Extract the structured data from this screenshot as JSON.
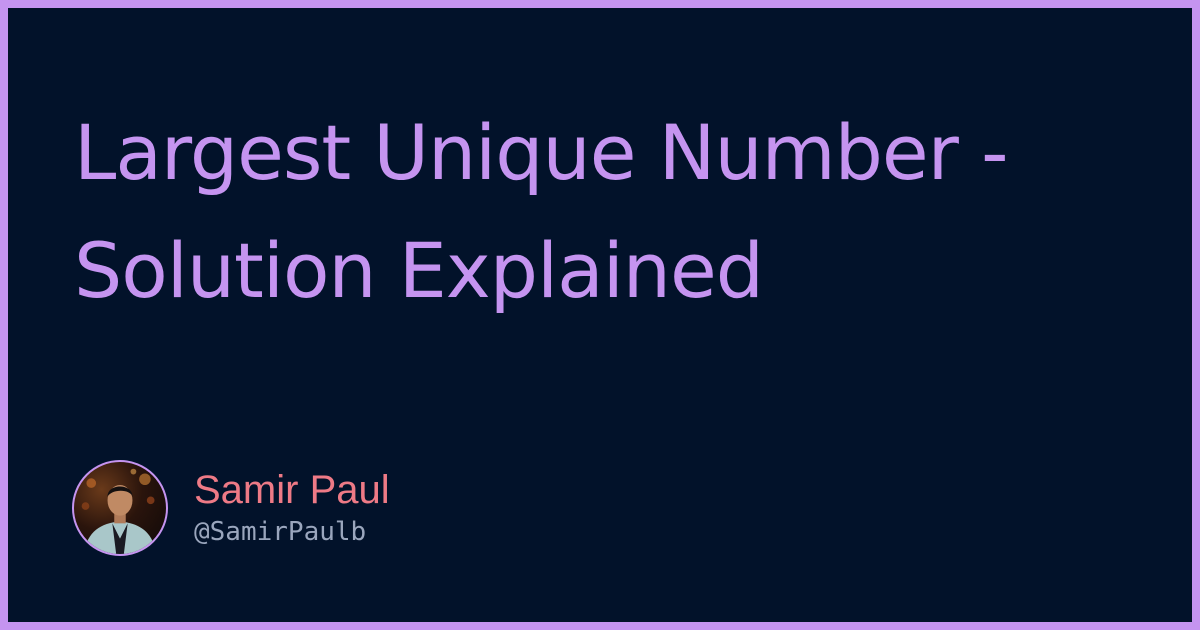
{
  "title": "Largest Unique Number - Solution Explained",
  "author": {
    "name": "Samir Paul",
    "handle": "@SamirPaulb"
  },
  "colors": {
    "frame": "#c594f0",
    "background": "#02122a",
    "title": "#c594f0",
    "author_name": "#ee7a86",
    "author_handle": "#9aa6bd"
  },
  "icons": {
    "avatar": "author-avatar-photo"
  }
}
